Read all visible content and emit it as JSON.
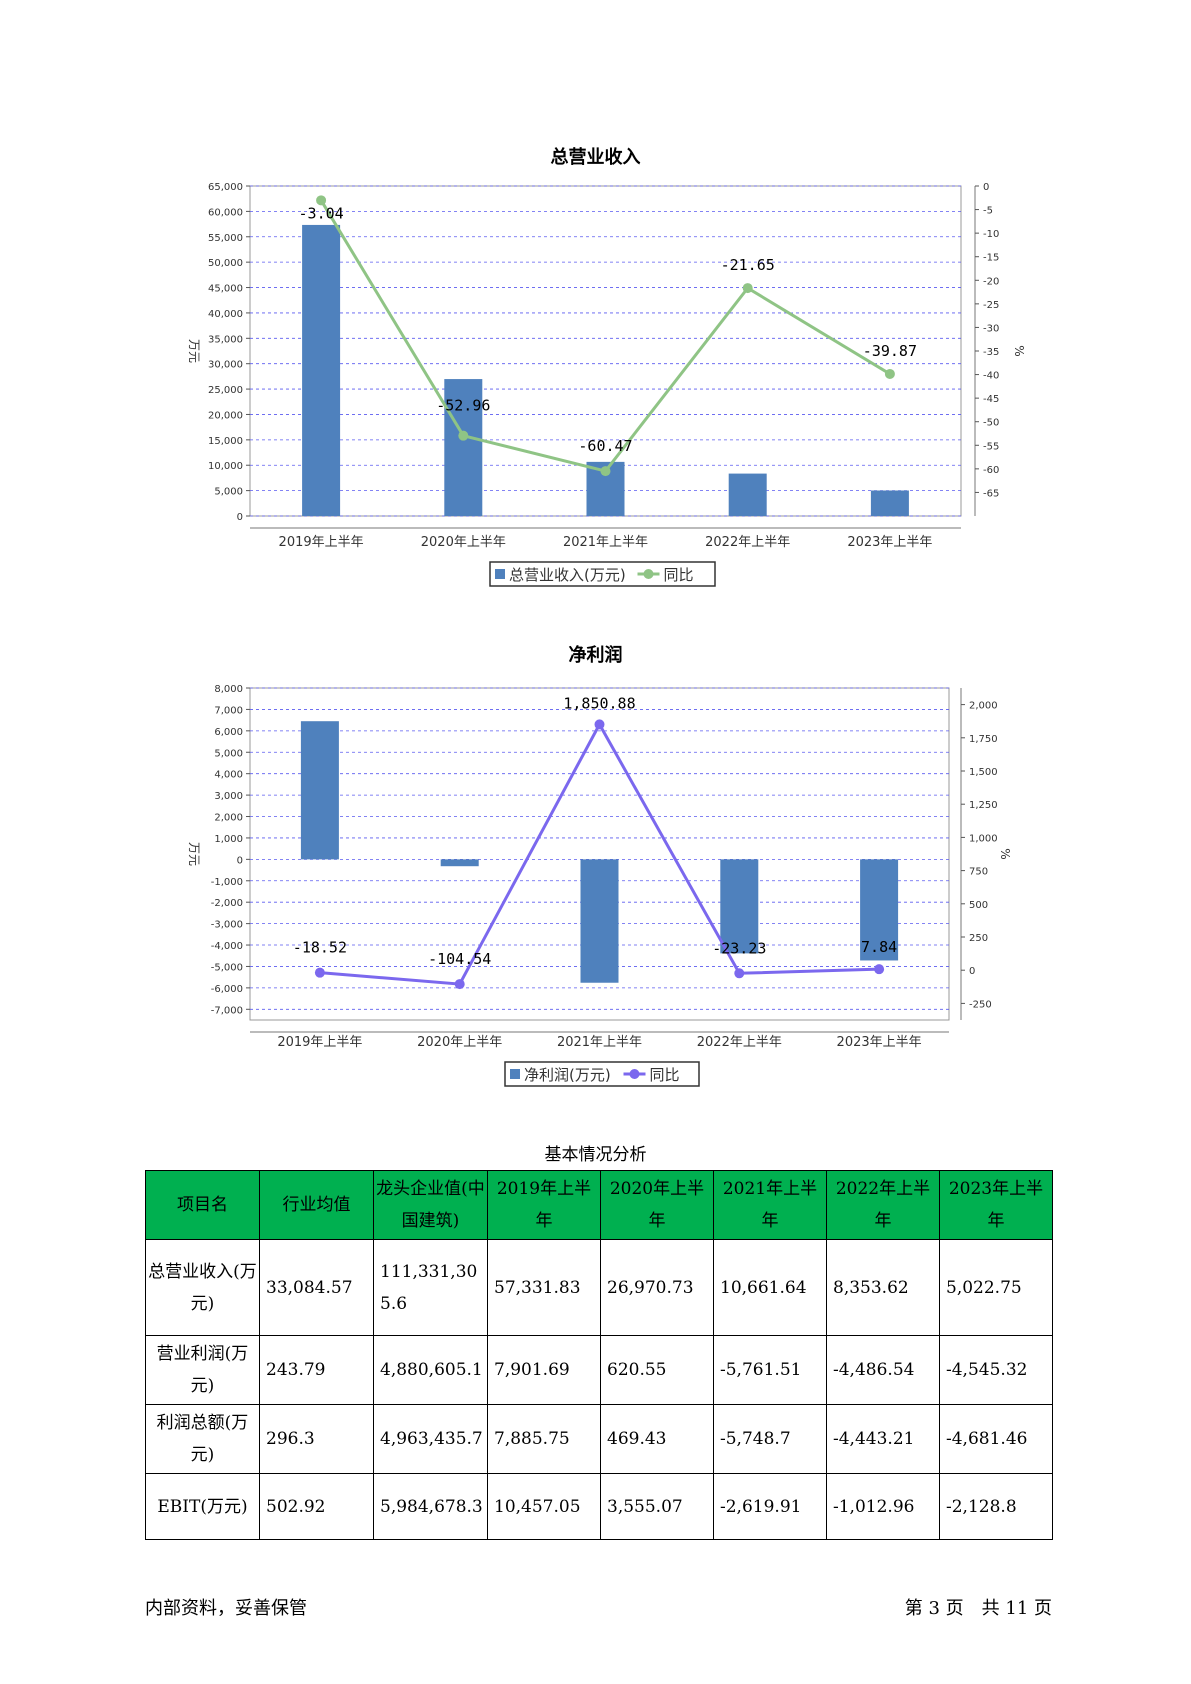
{
  "charts": {
    "revenue": {
      "title": "总营业收入"
    },
    "profit": {
      "title": "净利润"
    }
  },
  "chart_data": [
    {
      "type": "bar",
      "title": "总营业收入",
      "categories": [
        "2019年上半年",
        "2020年上半年",
        "2021年上半年",
        "2022年上半年",
        "2023年上半年"
      ],
      "ylabel": "万元",
      "y2label": "%",
      "ylim": [
        0,
        65000
      ],
      "yticks": [
        0,
        5000,
        10000,
        15000,
        20000,
        25000,
        30000,
        35000,
        40000,
        45000,
        50000,
        55000,
        60000,
        65000
      ],
      "ytick_labels": [
        "0",
        "5,000",
        "10,000",
        "15,000",
        "20,000",
        "25,000",
        "30,000",
        "35,000",
        "40,000",
        "45,000",
        "50,000",
        "55,000",
        "60,000",
        "65,000"
      ],
      "y2lim": [
        -70,
        0
      ],
      "y2ticks": [
        0,
        -5,
        -10,
        -15,
        -20,
        -25,
        -30,
        -35,
        -40,
        -45,
        -50,
        -55,
        -60,
        -65
      ],
      "y2tick_labels": [
        "0",
        "-5",
        "-10",
        "-15",
        "-20",
        "-25",
        "-30",
        "-35",
        "-40",
        "-45",
        "-50",
        "-55",
        "-60",
        "-65"
      ],
      "grid": true,
      "legend": "bottom",
      "series": [
        {
          "name": "总营业收入(万元)",
          "kind": "bar",
          "axis": "left",
          "color": "#4f81bd",
          "values": [
            57331.83,
            26970.73,
            10661.64,
            8353.62,
            5022.75
          ]
        },
        {
          "name": "同比",
          "kind": "line",
          "axis": "right",
          "color": "#8fc485",
          "values": [
            -3.04,
            -52.96,
            -60.47,
            -21.65,
            -39.87
          ],
          "labels": [
            "-3.04",
            "-52.96",
            "-60.47",
            "-21.65",
            "-39.87"
          ]
        }
      ]
    },
    {
      "type": "bar",
      "title": "净利润",
      "categories": [
        "2019年上半年",
        "2020年上半年",
        "2021年上半年",
        "2022年上半年",
        "2023年上半年"
      ],
      "ylabel": "万元",
      "y2label": "%",
      "ylim": [
        -7500,
        8000
      ],
      "yticks": [
        8000,
        7000,
        6000,
        5000,
        4000,
        3000,
        2000,
        1000,
        0,
        -1000,
        -2000,
        -3000,
        -4000,
        -5000,
        -6000,
        -7000
      ],
      "ytick_labels": [
        "8,000",
        "7,000",
        "6,000",
        "5,000",
        "4,000",
        "3,000",
        "2,000",
        "1,000",
        "0",
        "-1,000",
        "-2,000",
        "-3,000",
        "-4,000",
        "-5,000",
        "-6,000",
        "-7,000"
      ],
      "y2lim": [
        -375,
        2125
      ],
      "y2ticks": [
        2000,
        1750,
        1500,
        1250,
        1000,
        750,
        500,
        250,
        0,
        -250
      ],
      "y2tick_labels": [
        "2,000",
        "1,750",
        "1,500",
        "1,250",
        "1,000",
        "750",
        "500",
        "250",
        "0",
        "-250"
      ],
      "grid": true,
      "legend": "bottom",
      "series": [
        {
          "name": "净利润(万元)",
          "kind": "bar",
          "axis": "left",
          "color": "#4f81bd",
          "values": [
            6450,
            -320,
            -5760,
            -4390,
            -4720
          ]
        },
        {
          "name": "同比",
          "kind": "line",
          "axis": "right",
          "color": "#7b68ee",
          "values": [
            -18.52,
            -104.54,
            1850.88,
            -23.23,
            7.84
          ],
          "labels": [
            "-18.52",
            "-104.54",
            "1,850.88",
            "-23.23",
            "7.84"
          ]
        }
      ]
    }
  ],
  "table": {
    "caption": "基本情况分析",
    "headers": [
      "项目名",
      "行业均值",
      "龙头企业值(中国建筑)",
      "2019年上半年",
      "2020年上半年",
      "2021年上半年",
      "2022年上半年",
      "2023年上半年"
    ],
    "rows": [
      [
        "总营业收入(万元)",
        "33,084.57",
        "111,331,305.6",
        "57,331.83",
        "26,970.73",
        "10,661.64",
        "8,353.62",
        "5,022.75"
      ],
      [
        "营业利润(万元)",
        "243.79",
        "4,880,605.1",
        "7,901.69",
        "620.55",
        "-5,761.51",
        "-4,486.54",
        "-4,545.32"
      ],
      [
        "利润总额(万元)",
        "296.3",
        "4,963,435.7",
        "7,885.75",
        "469.43",
        "-5,748.7",
        "-4,443.21",
        "-4,681.46"
      ],
      [
        "EBIT(万元)",
        "502.92",
        "5,984,678.3",
        "10,457.05",
        "3,555.07",
        "-2,619.91",
        "-1,012.96",
        "-2,128.8"
      ]
    ]
  },
  "footer": {
    "left": "内部资料，妥善保管",
    "right": "第 3 页　共 11 页"
  }
}
